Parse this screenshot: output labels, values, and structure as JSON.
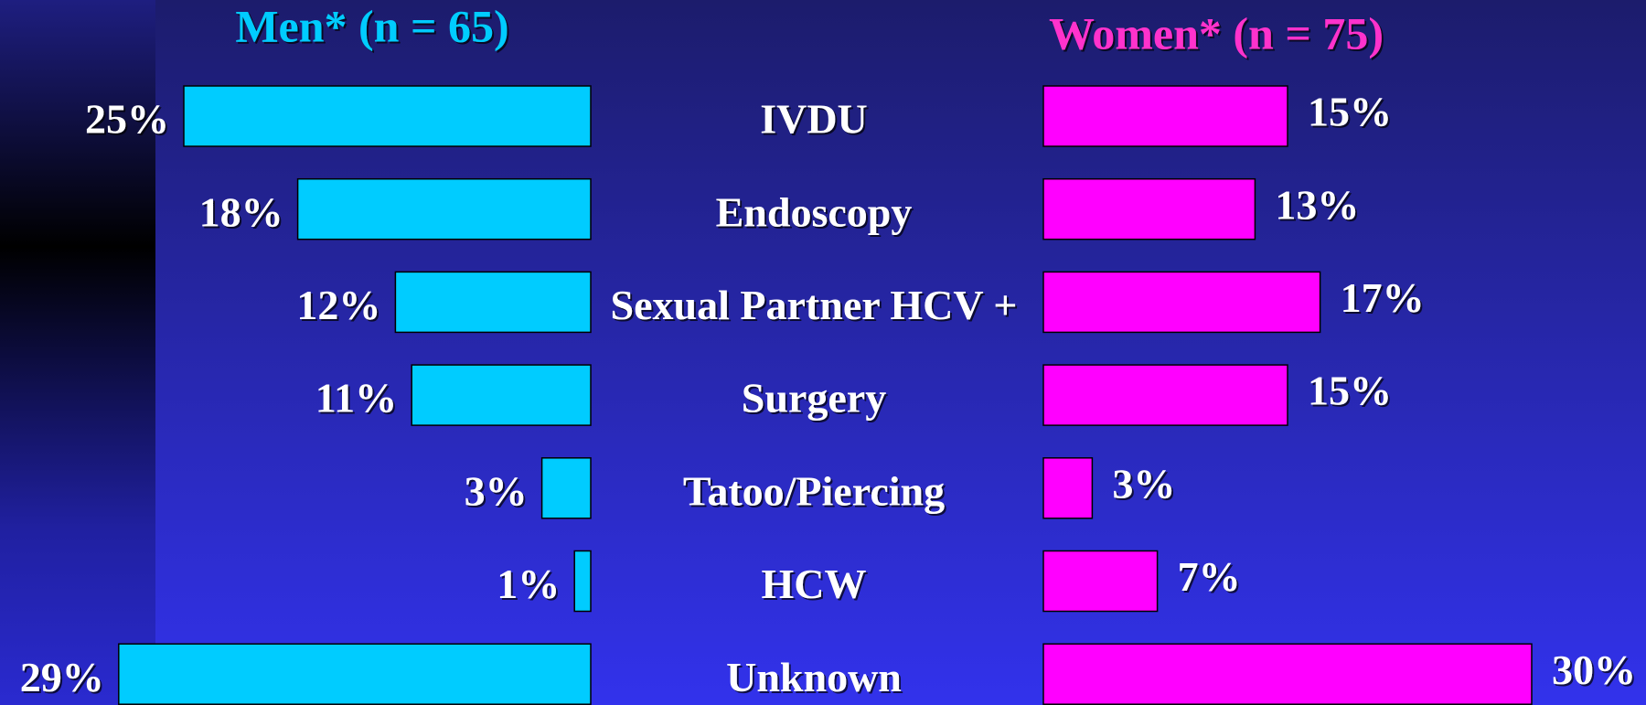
{
  "chart_data": {
    "type": "butterfly",
    "categories": [
      "IVDU",
      "Endoscopy",
      "Sexual Partner HCV +",
      "Surgery",
      "Tatoo/Piercing",
      "HCW",
      "Unknown"
    ],
    "series": [
      {
        "name": "Men* (n = 65)",
        "color": "#00ccff",
        "values": [
          25,
          18,
          12,
          11,
          3,
          1,
          29
        ],
        "value_labels": [
          "25%",
          "18%",
          "12%",
          "11%",
          "3%",
          "1%",
          "29%"
        ]
      },
      {
        "name": "Women* (n = 75)",
        "color": "#ff00ff",
        "values": [
          15,
          13,
          17,
          15,
          3,
          7,
          30
        ],
        "value_labels": [
          "15%",
          "13%",
          "17%",
          "15%",
          "3%",
          "7%",
          "30%"
        ]
      }
    ]
  }
}
